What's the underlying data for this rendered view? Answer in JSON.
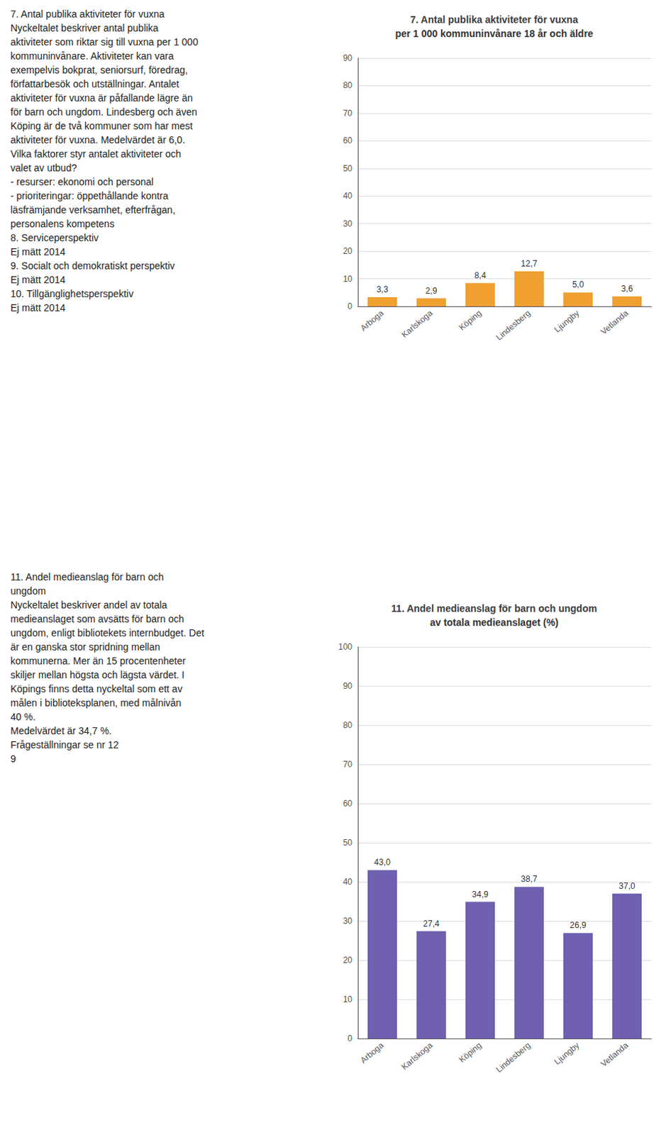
{
  "chart_data": [
    {
      "type": "bar",
      "title": "7. Antal publika aktiviteter för vuxna",
      "subtitle": "per 1 000 kommuninvånare 18 år och äldre",
      "categories": [
        "Arboga",
        "Karlskoga",
        "Köping",
        "Lindesberg",
        "Ljungby",
        "Vetlanda"
      ],
      "values": [
        3.3,
        2.9,
        8.4,
        12.7,
        5.0,
        3.6
      ],
      "value_labels": [
        "3,3",
        "2,9",
        "8,4",
        "12,7",
        "5,0",
        "3,6"
      ],
      "data_labels": true,
      "color": "#F0A030",
      "ylim": [
        0,
        90
      ],
      "yticks": [
        0,
        10,
        20,
        30,
        40,
        50,
        60,
        70,
        80,
        90
      ],
      "grid": true,
      "annotations": [
        "7. Antal publika aktiviteter för vuxna",
        "Nyckeltalet beskriver antal publika",
        "aktiviteter som riktar sig till vuxna per 1 000",
        "kommuninvånare. Aktiviteter kan vara",
        "exempelvis bokprat, seniorsurf, föredrag,",
        "författarbesök och utställningar. Antalet",
        "aktiviteter för vuxna är påfallande lägre än",
        "för barn och ungdom. Lindesberg och även",
        "Köping är de två kommuner som har mest",
        "aktiviteter för vuxna. Medelvärdet är 6,0.",
        "Vilka faktorer styr antalet aktiviteter och",
        "valet av utbud?",
        "- resurser: ekonomi och personal",
        "- prioriteringar: öppethållande kontra",
        "läsfrämjande verksamhet, efterfrågan,",
        "personalens kompetens",
        "8. Serviceperspektiv",
        "Ej mätt 2014",
        "9. Socialt och demokratiskt perspektiv",
        "Ej mätt 2014",
        "10. Tillgänglighetsperspektiv",
        "Ej mätt 2014"
      ]
    },
    {
      "type": "bar",
      "title": "11. Andel medieanslag för barn och ungdom",
      "subtitle": "av totala medieanslaget (%)",
      "categories": [
        "Arboga",
        "Karlskoga",
        "Köping",
        "Lindesberg",
        "Ljungby",
        "Vetlanda"
      ],
      "values": [
        43.0,
        27.4,
        34.9,
        38.7,
        26.9,
        37.0
      ],
      "value_labels": [
        "43,0",
        "27,4",
        "34,9",
        "38,7",
        "26,9",
        "37,0"
      ],
      "data_labels": true,
      "color": "#7060B0",
      "ylim": [
        0,
        100
      ],
      "yticks": [
        0,
        10,
        20,
        30,
        40,
        50,
        60,
        70,
        80,
        90,
        100
      ],
      "grid": true,
      "annotations": [
        "11. Andel medieanslag för barn och",
        "ungdom",
        "Nyckeltalet beskriver andel av totala",
        "medieanslaget som avsätts för barn och",
        "ungdom, enligt bibliotekets internbudget. Det",
        "är en ganska stor spridning mellan",
        "kommunerna. Mer än 15 procentenheter",
        "skiljer mellan högsta och lägsta värdet. I",
        "Köpings finns detta nyckeltal som ett av",
        "målen i biblioteksplanen, med målnivån",
        "40 %.",
        "Medelvärdet är 34,7 %.",
        "Frågeställningar se nr 12",
        "9"
      ]
    }
  ]
}
